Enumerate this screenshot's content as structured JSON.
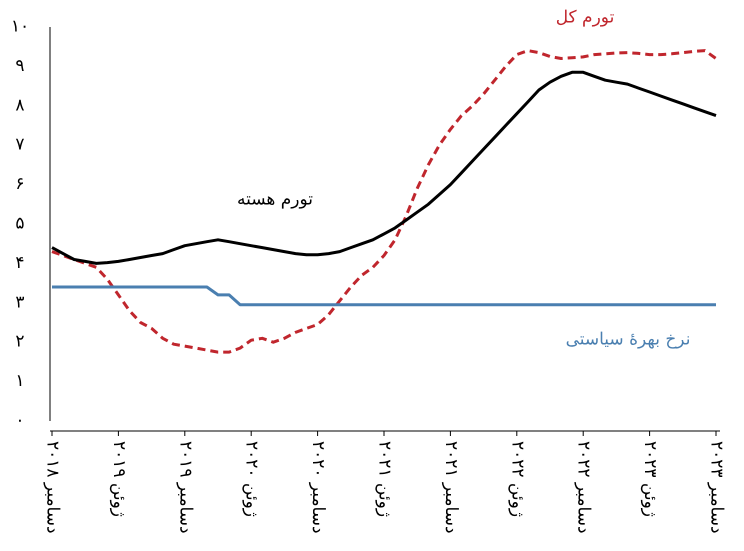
{
  "chart_data": {
    "type": "line",
    "categories": [
      "دسامبر ۲۰۱۸",
      null,
      null,
      null,
      null,
      null,
      "ژوئن ۲۰۱۹",
      null,
      null,
      null,
      null,
      null,
      "دسامبر ۲۰۱۹",
      null,
      null,
      null,
      null,
      null,
      "ژوئن ۲۰۲۰",
      null,
      null,
      null,
      null,
      null,
      "دسامبر ۲۰۲۰",
      null,
      null,
      null,
      null,
      null,
      "ژوئن ۲۰۲۱",
      null,
      null,
      null,
      null,
      null,
      "دسامبر ۲۰۲۱",
      null,
      null,
      null,
      null,
      null,
      "ژوئن ۲۰۲۲",
      null,
      null,
      null,
      null,
      null,
      "دسامبر ۲۰۲۲",
      null,
      null,
      null,
      null,
      null,
      "ژوئن ۲۰۲۳",
      null,
      null,
      null,
      null,
      null,
      "دسامبر ۲۰۲۳"
    ],
    "series": [
      {
        "name": "تورم کل",
        "color": "#c0262d",
        "dash": true,
        "values": [
          4.3,
          4.2,
          4.1,
          4.0,
          3.9,
          3.6,
          3.2,
          2.8,
          2.5,
          2.35,
          2.1,
          1.95,
          1.9,
          1.85,
          1.8,
          1.75,
          1.75,
          1.85,
          2.05,
          2.1,
          2.0,
          2.1,
          2.25,
          2.35,
          2.45,
          2.7,
          3.05,
          3.4,
          3.7,
          3.9,
          4.2,
          4.6,
          5.2,
          5.9,
          6.5,
          7.0,
          7.4,
          7.75,
          8.0,
          8.3,
          8.65,
          9.0,
          9.3,
          9.4,
          9.35,
          9.25,
          9.2,
          9.22,
          9.24,
          9.3,
          9.32,
          9.34,
          9.35,
          9.33,
          9.3,
          9.3,
          9.32,
          9.35,
          9.38,
          9.4,
          9.2
        ]
      },
      {
        "name": "تورم هسته",
        "color": "#000000",
        "dash": false,
        "values": [
          4.4,
          4.25,
          4.1,
          4.05,
          4.0,
          4.02,
          4.05,
          4.1,
          4.15,
          4.2,
          4.25,
          4.35,
          4.45,
          4.5,
          4.55,
          4.6,
          4.55,
          4.5,
          4.45,
          4.4,
          4.35,
          4.3,
          4.25,
          4.22,
          4.22,
          4.25,
          4.3,
          4.4,
          4.5,
          4.6,
          4.75,
          4.9,
          5.1,
          5.3,
          5.5,
          5.75,
          6.0,
          6.3,
          6.6,
          6.9,
          7.2,
          7.5,
          7.8,
          8.1,
          8.4,
          8.6,
          8.75,
          8.85,
          8.85,
          8.75,
          8.65,
          8.6,
          8.55,
          8.45,
          8.35,
          8.25,
          8.15,
          8.05,
          7.95,
          7.85,
          7.75
        ]
      },
      {
        "name": "نرخ بهرهٔ سیاستی",
        "color": "#4a7fb0",
        "dash": false,
        "values": [
          3.4,
          3.4,
          3.4,
          3.4,
          3.4,
          3.4,
          3.4,
          3.4,
          3.4,
          3.4,
          3.4,
          3.4,
          3.4,
          3.4,
          3.4,
          3.2,
          3.2,
          2.95,
          2.95,
          2.95,
          2.95,
          2.95,
          2.95,
          2.95,
          2.95,
          2.95,
          2.95,
          2.95,
          2.95,
          2.95,
          2.95,
          2.95,
          2.95,
          2.95,
          2.95,
          2.95,
          2.95,
          2.95,
          2.95,
          2.95,
          2.95,
          2.95,
          2.95,
          2.95,
          2.95,
          2.95,
          2.95,
          2.95,
          2.95,
          2.95,
          2.95,
          2.95,
          2.95,
          2.95,
          2.95,
          2.95,
          2.95,
          2.95,
          2.95,
          2.95,
          2.95
        ]
      }
    ],
    "ylim": [
      0,
      10
    ],
    "yticks": [
      {
        "value": 0,
        "label": "۰"
      },
      {
        "value": 1,
        "label": "۱"
      },
      {
        "value": 2,
        "label": "۲"
      },
      {
        "value": 3,
        "label": "۳"
      },
      {
        "value": 4,
        "label": "۴"
      },
      {
        "value": 5,
        "label": "۵"
      },
      {
        "value": 6,
        "label": "۶"
      },
      {
        "value": 7,
        "label": "۷"
      },
      {
        "value": 8,
        "label": "۸"
      },
      {
        "value": 9,
        "label": "۹"
      },
      {
        "value": 10,
        "label": "۱۰"
      }
    ],
    "grid": false
  }
}
